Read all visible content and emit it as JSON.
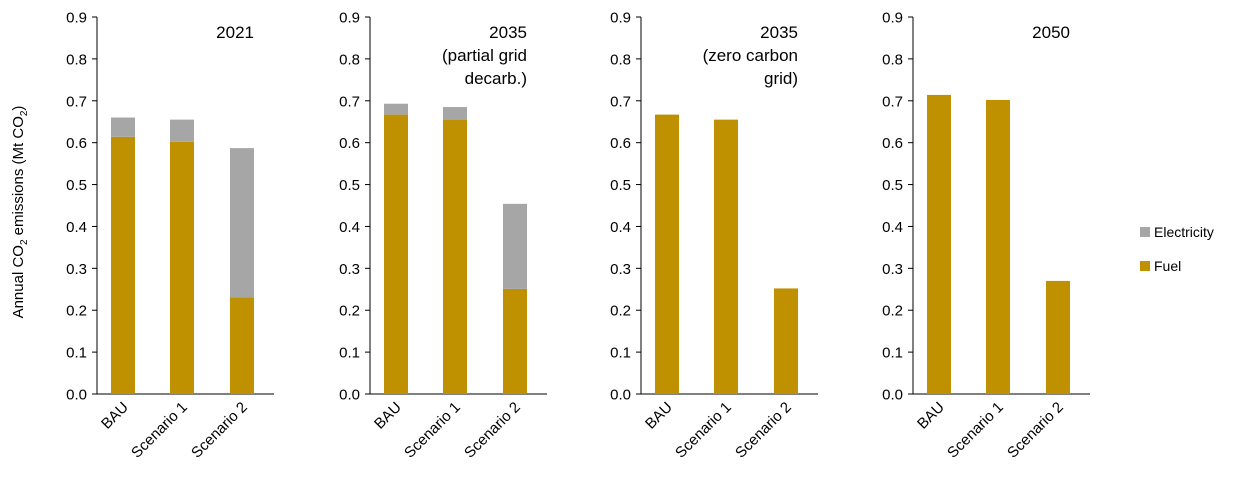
{
  "y_axis_label": {
    "prefix": "Annual CO",
    "sub1": "2",
    "middle": " emissions (Mt CO",
    "sub2": "2",
    "suffix": ")"
  },
  "legend": [
    {
      "label": "Electricity",
      "color": "#a6a6a6"
    },
    {
      "label": "Fuel",
      "color": "#bf9000"
    }
  ],
  "chart_data": [
    {
      "type": "bar",
      "stacked": true,
      "title_lines": [
        "2021"
      ],
      "categories": [
        "BAU",
        "Scenario 1",
        "Scenario 2"
      ],
      "series": [
        {
          "name": "Fuel",
          "color": "#bf9000",
          "values": [
            0.614,
            0.602,
            0.231
          ]
        },
        {
          "name": "Electricity",
          "color": "#a6a6a6",
          "values": [
            0.046,
            0.053,
            0.356
          ]
        }
      ],
      "ylim": [
        0,
        0.9
      ],
      "yticks": [
        "0.0",
        "0.1",
        "0.2",
        "0.3",
        "0.4",
        "0.5",
        "0.6",
        "0.7",
        "0.8",
        "0.9"
      ],
      "grid": false
    },
    {
      "type": "bar",
      "stacked": true,
      "title_lines": [
        "2035",
        "(partial grid",
        "decarb.)"
      ],
      "categories": [
        "BAU",
        "Scenario 1",
        "Scenario 2"
      ],
      "series": [
        {
          "name": "Fuel",
          "color": "#bf9000",
          "values": [
            0.667,
            0.655,
            0.251
          ]
        },
        {
          "name": "Electricity",
          "color": "#a6a6a6",
          "values": [
            0.026,
            0.03,
            0.203
          ]
        }
      ],
      "ylim": [
        0,
        0.9
      ],
      "yticks": [
        "0.0",
        "0.1",
        "0.2",
        "0.3",
        "0.4",
        "0.5",
        "0.6",
        "0.7",
        "0.8",
        "0.9"
      ],
      "grid": false
    },
    {
      "type": "bar",
      "stacked": true,
      "title_lines": [
        "2035",
        "(zero carbon",
        "grid)"
      ],
      "categories": [
        "BAU",
        "Scenario 1",
        "Scenario 2"
      ],
      "series": [
        {
          "name": "Fuel",
          "color": "#bf9000",
          "values": [
            0.667,
            0.655,
            0.252
          ]
        },
        {
          "name": "Electricity",
          "color": "#a6a6a6",
          "values": [
            0,
            0,
            0
          ]
        }
      ],
      "ylim": [
        0,
        0.9
      ],
      "yticks": [
        "0.0",
        "0.1",
        "0.2",
        "0.3",
        "0.4",
        "0.5",
        "0.6",
        "0.7",
        "0.8",
        "0.9"
      ],
      "grid": false
    },
    {
      "type": "bar",
      "stacked": true,
      "title_lines": [
        "2050"
      ],
      "categories": [
        "BAU",
        "Scenario 1",
        "Scenario 2"
      ],
      "series": [
        {
          "name": "Fuel",
          "color": "#bf9000",
          "values": [
            0.714,
            0.702,
            0.27
          ]
        },
        {
          "name": "Electricity",
          "color": "#a6a6a6",
          "values": [
            0,
            0,
            0
          ]
        }
      ],
      "ylim": [
        0,
        0.9
      ],
      "yticks": [
        "0.0",
        "0.1",
        "0.2",
        "0.3",
        "0.4",
        "0.5",
        "0.6",
        "0.7",
        "0.8",
        "0.9"
      ],
      "grid": false
    }
  ]
}
